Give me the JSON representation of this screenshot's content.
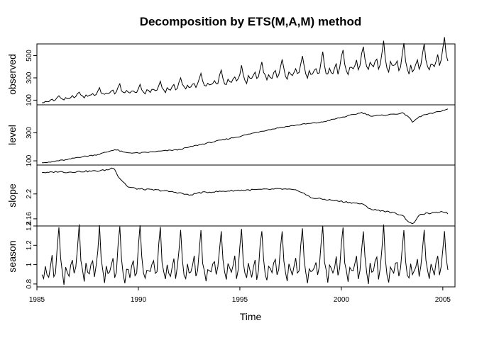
{
  "chart_data": {
    "type": "line",
    "title": "Decomposition by ETS(M,A,M) method",
    "xlabel": "Time",
    "xlim": [
      1985,
      2005.6
    ],
    "x_ticks": [
      1985,
      1990,
      1995,
      2000,
      2005
    ],
    "start": 1985.25,
    "frequency": 12,
    "panels": [
      {
        "name": "observed",
        "ylim": [
          58,
          605
        ],
        "y_ticks": [
          100,
          300,
          500
        ],
        "anchors": [
          [
            1985.3,
            85
          ],
          [
            1986.0,
            110
          ],
          [
            1987.0,
            135
          ],
          [
            1988.0,
            160
          ],
          [
            1989.0,
            185
          ],
          [
            1990.0,
            180
          ],
          [
            1991.0,
            200
          ],
          [
            1992.0,
            225
          ],
          [
            1993.0,
            250
          ],
          [
            1994.0,
            270
          ],
          [
            1995.0,
            295
          ],
          [
            1996.0,
            335
          ],
          [
            1997.0,
            350
          ],
          [
            1998.0,
            370
          ],
          [
            1999.0,
            375
          ],
          [
            2000.0,
            400
          ],
          [
            2001.0,
            430
          ],
          [
            2002.0,
            440
          ],
          [
            2003.0,
            440
          ],
          [
            2003.5,
            400
          ],
          [
            2004.0,
            430
          ],
          [
            2004.5,
            450
          ],
          [
            2005.0,
            480
          ],
          [
            2005.3,
            470
          ]
        ]
      },
      {
        "name": "level",
        "ylim": [
          70,
          500
        ],
        "y_ticks": [
          100,
          300
        ],
        "anchors": [
          [
            1985.3,
            90
          ],
          [
            1985.6,
            88
          ],
          [
            1986.0,
            100
          ],
          [
            1986.5,
            108
          ],
          [
            1987.0,
            125
          ],
          [
            1988.0,
            145
          ],
          [
            1988.5,
            165
          ],
          [
            1988.8,
            180
          ],
          [
            1989.0,
            175
          ],
          [
            1989.3,
            160
          ],
          [
            1990.0,
            155
          ],
          [
            1991.0,
            168
          ],
          [
            1992.0,
            180
          ],
          [
            1993.0,
            215
          ],
          [
            1994.0,
            245
          ],
          [
            1995.0,
            275
          ],
          [
            1996.0,
            310
          ],
          [
            1997.0,
            338
          ],
          [
            1998.0,
            360
          ],
          [
            1999.0,
            375
          ],
          [
            2000.0,
            410
          ],
          [
            2000.6,
            430
          ],
          [
            2001.0,
            445
          ],
          [
            2001.5,
            420
          ],
          [
            2002.0,
            425
          ],
          [
            2003.0,
            440
          ],
          [
            2003.3,
            420
          ],
          [
            2003.5,
            375
          ],
          [
            2003.8,
            410
          ],
          [
            2004.0,
            425
          ],
          [
            2004.5,
            440
          ],
          [
            2005.0,
            460
          ],
          [
            2005.3,
            470
          ]
        ]
      },
      {
        "name": "slope",
        "ylim": [
          2.1485,
          2.2465
        ],
        "y_ticks": [
          2.16,
          2.2
        ],
        "anchors": [
          [
            1985.3,
            2.235
          ],
          [
            1985.5,
            2.234
          ],
          [
            1986.0,
            2.236
          ],
          [
            1986.5,
            2.235
          ],
          [
            1987.0,
            2.236
          ],
          [
            1988.0,
            2.237
          ],
          [
            1988.5,
            2.239
          ],
          [
            1988.8,
            2.243
          ],
          [
            1989.0,
            2.228
          ],
          [
            1989.5,
            2.211
          ],
          [
            1990.0,
            2.208
          ],
          [
            1991.0,
            2.206
          ],
          [
            1992.0,
            2.202
          ],
          [
            1992.5,
            2.198
          ],
          [
            1993.0,
            2.202
          ],
          [
            1994.0,
            2.204
          ],
          [
            1995.0,
            2.206
          ],
          [
            1996.0,
            2.207
          ],
          [
            1997.0,
            2.208
          ],
          [
            1997.5,
            2.207
          ],
          [
            1998.0,
            2.204
          ],
          [
            1998.5,
            2.194
          ],
          [
            1999.0,
            2.192
          ],
          [
            2000.0,
            2.188
          ],
          [
            2001.0,
            2.184
          ],
          [
            2001.5,
            2.175
          ],
          [
            2002.0,
            2.173
          ],
          [
            2002.5,
            2.17
          ],
          [
            2003.0,
            2.166
          ],
          [
            2003.3,
            2.156
          ],
          [
            2003.5,
            2.151
          ],
          [
            2003.8,
            2.164
          ],
          [
            2004.0,
            2.168
          ],
          [
            2004.5,
            2.169
          ],
          [
            2005.0,
            2.172
          ],
          [
            2005.3,
            2.168
          ]
        ]
      },
      {
        "name": "season",
        "ylim": [
          0.77,
          1.4
        ],
        "y_ticks": [
          0.8,
          1.0,
          1.2,
          1.4
        ],
        "anchors": [],
        "monthly_pattern": [
          0.92,
          0.83,
          0.98,
          0.93,
          0.9,
          1.0,
          1.06,
          0.88,
          0.95,
          1.18,
          1.38,
          1.05
        ]
      }
    ]
  }
}
